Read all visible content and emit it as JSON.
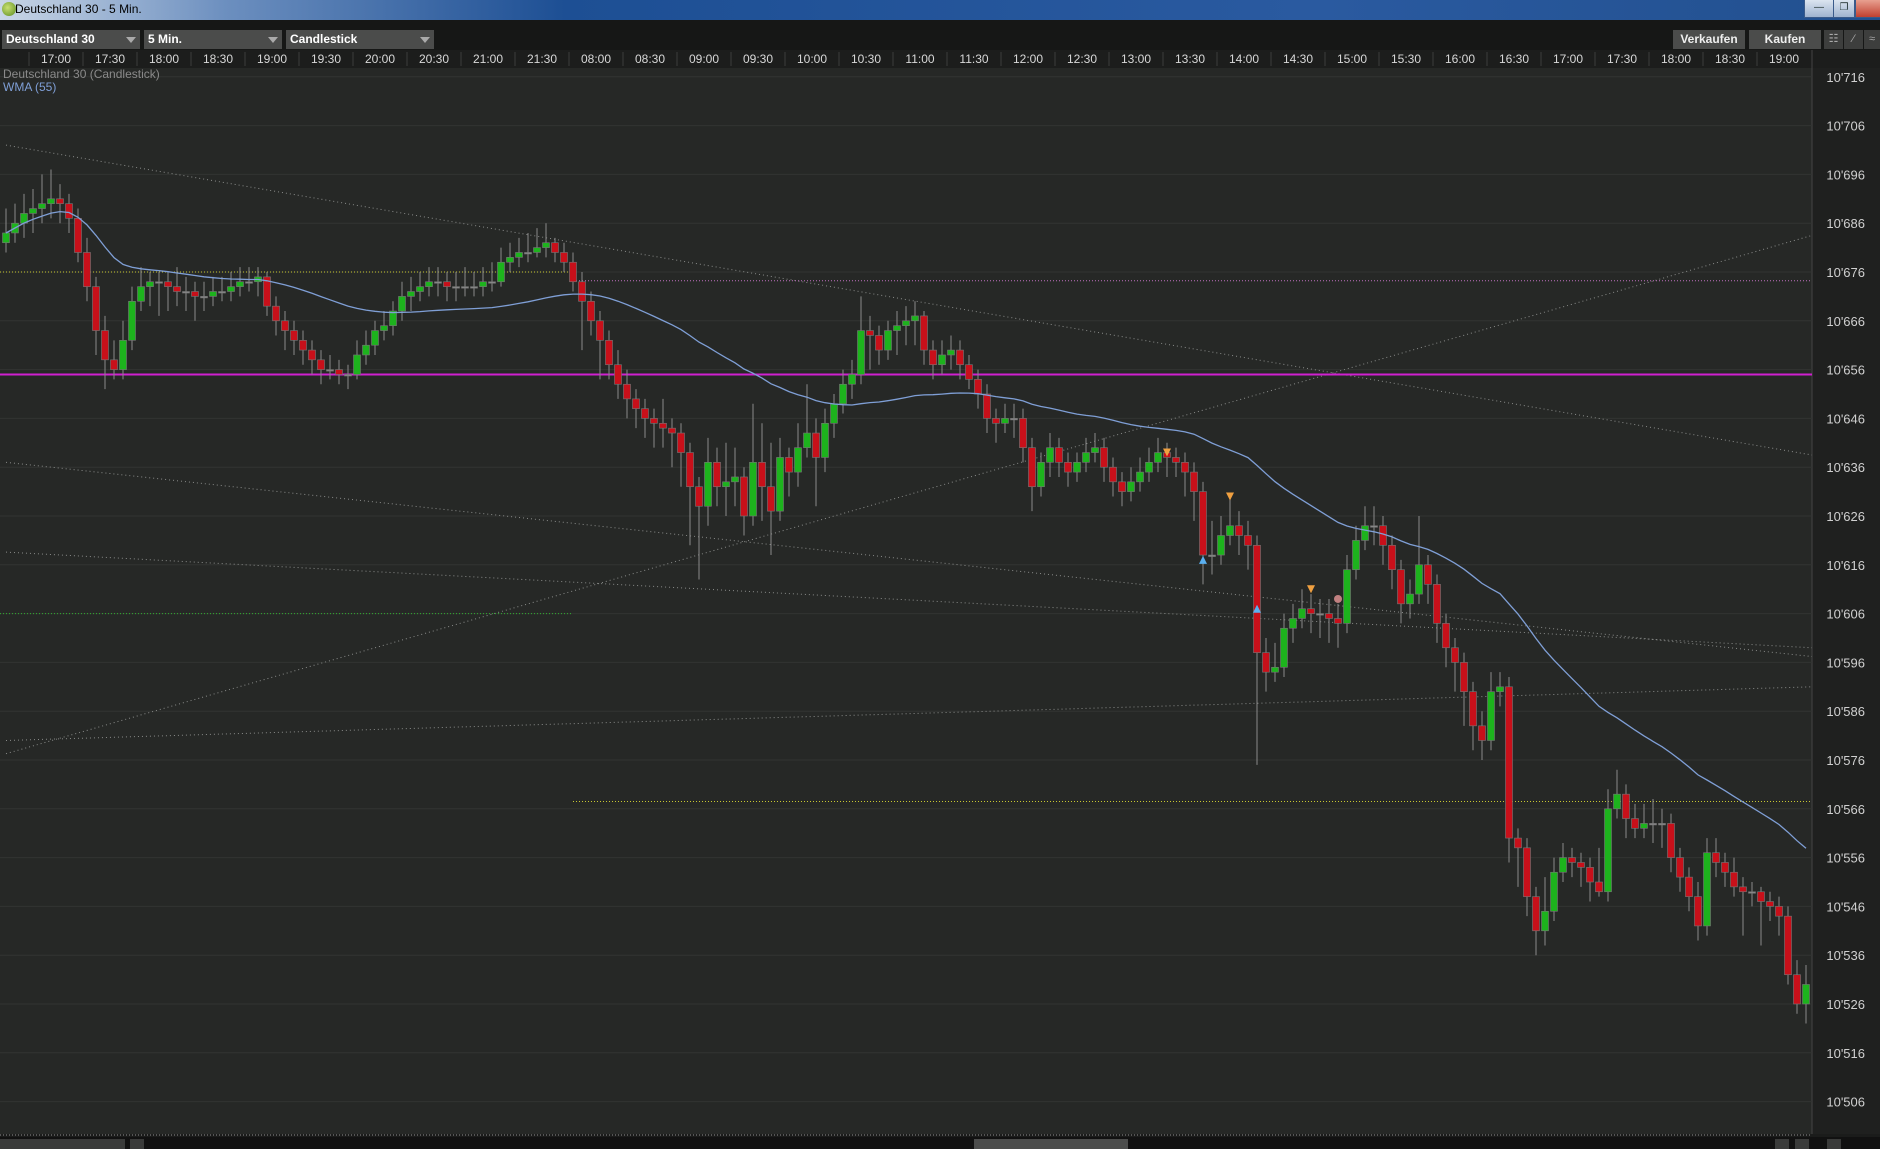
{
  "window": {
    "title": "Deutschland 30 - 5 Min.",
    "minimize_icon": "minimize-icon",
    "restore_icon": "restore-icon",
    "close_icon": "close-icon"
  },
  "toolbar": {
    "instrument": "Deutschland 30",
    "interval": "5 Min.",
    "chart_type": "Candlestick",
    "sell_label": "Verkaufen",
    "buy_label": "Kaufen",
    "icons": [
      "tick-chart-icon",
      "draw-line-icon",
      "indicator-chart-icon"
    ]
  },
  "legend": {
    "series": "Deutschland 30 (Candlestick)",
    "indicator": "WMA (55)"
  },
  "colors": {
    "up": "#1db31d",
    "down": "#c8101a",
    "wma": "#7f9fd6",
    "magenta_line": "#d020d0",
    "background": "#262826"
  },
  "chart_data": {
    "type": "candlestick",
    "title": "",
    "x_tick_labels": [
      "17:00",
      "17:30",
      "18:00",
      "18:30",
      "19:00",
      "19:30",
      "20:00",
      "20:30",
      "21:00",
      "21:30",
      "08:00",
      "08:30",
      "09:00",
      "09:30",
      "10:00",
      "10:30",
      "11:00",
      "11:30",
      "12:00",
      "12:30",
      "13:00",
      "13:30",
      "14:00",
      "14:30",
      "15:00",
      "15:30",
      "16:00",
      "16:30",
      "17:00",
      "17:30",
      "18:00",
      "18:30",
      "19:00"
    ],
    "y_tick_labels": [
      "10'716",
      "10'706",
      "10'696",
      "10'686",
      "10'676",
      "10'666",
      "10'656",
      "10'646",
      "10'636",
      "10'626",
      "10'616",
      "10'606",
      "10'596",
      "10'586",
      "10'576",
      "10'566",
      "10'556",
      "10'546",
      "10'536",
      "10'526",
      "10'516",
      "10'506"
    ],
    "ylim": [
      10500,
      10721
    ],
    "grid": true,
    "indicator": {
      "type": "WMA",
      "period": 55
    },
    "ohlc": [
      [
        10682,
        10689,
        10680,
        10684
      ],
      [
        10684,
        10690,
        10682,
        10686
      ],
      [
        10686,
        10692,
        10683,
        10688
      ],
      [
        10688,
        10693,
        10684,
        10689
      ],
      [
        10689,
        10696,
        10686,
        10690
      ],
      [
        10690,
        10697,
        10687,
        10691
      ],
      [
        10691,
        10694,
        10686,
        10690
      ],
      [
        10690,
        10692,
        10684,
        10687
      ],
      [
        10687,
        10689,
        10678,
        10680
      ],
      [
        10680,
        10683,
        10670,
        10673
      ],
      [
        10673,
        10675,
        10659,
        10664
      ],
      [
        10664,
        10667,
        10652,
        10658
      ],
      [
        10658,
        10662,
        10654,
        10656
      ],
      [
        10656,
        10666,
        10654,
        10662
      ],
      [
        10662,
        10673,
        10660,
        10670
      ],
      [
        10670,
        10677,
        10668,
        10673
      ],
      [
        10673,
        10676,
        10669,
        10674
      ],
      [
        10674,
        10676,
        10667,
        10674
      ],
      [
        10674,
        10676,
        10668,
        10673
      ],
      [
        10673,
        10677,
        10669,
        10672
      ],
      [
        10672,
        10675,
        10668,
        10672
      ],
      [
        10672,
        10674,
        10666,
        10671
      ],
      [
        10671,
        10674,
        10668,
        10671
      ],
      [
        10671,
        10675,
        10669,
        10672
      ],
      [
        10672,
        10675,
        10670,
        10672
      ],
      [
        10672,
        10676,
        10670,
        10673
      ],
      [
        10673,
        10677,
        10671,
        10674
      ],
      [
        10674,
        10677,
        10672,
        10674
      ],
      [
        10674,
        10677,
        10671,
        10675
      ],
      [
        10675,
        10676,
        10667,
        10669
      ],
      [
        10669,
        10671,
        10663,
        10666
      ],
      [
        10666,
        10668,
        10660,
        10664
      ],
      [
        10664,
        10666,
        10659,
        10662
      ],
      [
        10662,
        10664,
        10657,
        10660
      ],
      [
        10660,
        10662,
        10655,
        10658
      ],
      [
        10658,
        10660,
        10653,
        10656
      ],
      [
        10656,
        10659,
        10654,
        10656
      ],
      [
        10656,
        10658,
        10653,
        10655
      ],
      [
        10655,
        10657,
        10652,
        10655
      ],
      [
        10655,
        10662,
        10654,
        10659
      ],
      [
        10659,
        10664,
        10657,
        10661
      ],
      [
        10661,
        10666,
        10659,
        10664
      ],
      [
        10664,
        10668,
        10662,
        10665
      ],
      [
        10665,
        10670,
        10663,
        10668
      ],
      [
        10668,
        10674,
        10666,
        10671
      ],
      [
        10671,
        10675,
        10668,
        10672
      ],
      [
        10672,
        10676,
        10670,
        10673
      ],
      [
        10673,
        10677,
        10671,
        10674
      ],
      [
        10674,
        10677,
        10671,
        10674
      ],
      [
        10674,
        10676,
        10670,
        10673
      ],
      [
        10673,
        10676,
        10670,
        10673
      ],
      [
        10673,
        10677,
        10671,
        10673
      ],
      [
        10673,
        10676,
        10671,
        10673
      ],
      [
        10673,
        10677,
        10671,
        10674
      ],
      [
        10674,
        10678,
        10672,
        10674
      ],
      [
        10674,
        10681,
        10673,
        10678
      ],
      [
        10678,
        10682,
        10676,
        10679
      ],
      [
        10679,
        10683,
        10677,
        10680
      ],
      [
        10680,
        10684,
        10678,
        10680
      ],
      [
        10680,
        10685,
        10679,
        10681
      ],
      [
        10681,
        10686,
        10679,
        10682
      ],
      [
        10682,
        10683,
        10678,
        10680
      ],
      [
        10680,
        10682,
        10676,
        10678
      ],
      [
        10678,
        10680,
        10672,
        10674
      ],
      [
        10674,
        10676,
        10660,
        10670
      ],
      [
        10670,
        10672,
        10663,
        10666
      ],
      [
        10666,
        10668,
        10654,
        10662
      ],
      [
        10662,
        10664,
        10654,
        10657
      ],
      [
        10657,
        10660,
        10650,
        10653
      ],
      [
        10653,
        10656,
        10646,
        10650
      ],
      [
        10650,
        10652,
        10644,
        10648
      ],
      [
        10648,
        10650,
        10642,
        10646
      ],
      [
        10646,
        10648,
        10640,
        10645
      ],
      [
        10645,
        10650,
        10640,
        10644
      ],
      [
        10644,
        10646,
        10636,
        10643
      ],
      [
        10643,
        10645,
        10632,
        10639
      ],
      [
        10639,
        10641,
        10620,
        10632
      ],
      [
        10632,
        10634,
        10613,
        10628
      ],
      [
        10628,
        10642,
        10624,
        10637
      ],
      [
        10637,
        10640,
        10628,
        10632
      ],
      [
        10632,
        10641,
        10626,
        10633
      ],
      [
        10633,
        10640,
        10628,
        10634
      ],
      [
        10634,
        10636,
        10622,
        10626
      ],
      [
        10626,
        10649,
        10624,
        10637
      ],
      [
        10637,
        10645,
        10625,
        10632
      ],
      [
        10632,
        10641,
        10618,
        10627
      ],
      [
        10627,
        10642,
        10625,
        10638
      ],
      [
        10638,
        10640,
        10630,
        10635
      ],
      [
        10635,
        10645,
        10632,
        10640
      ],
      [
        10640,
        10653,
        10638,
        10643
      ],
      [
        10643,
        10646,
        10628,
        10638
      ],
      [
        10638,
        10648,
        10635,
        10645
      ],
      [
        10645,
        10651,
        10642,
        10649
      ],
      [
        10649,
        10656,
        10647,
        10653
      ],
      [
        10653,
        10658,
        10650,
        10655
      ],
      [
        10655,
        10671,
        10653,
        10664
      ],
      [
        10664,
        10667,
        10656,
        10663
      ],
      [
        10663,
        10665,
        10657,
        10660
      ],
      [
        10660,
        10666,
        10658,
        10664
      ],
      [
        10664,
        10668,
        10659,
        10665
      ],
      [
        10665,
        10669,
        10661,
        10666
      ],
      [
        10666,
        10670,
        10661,
        10667
      ],
      [
        10667,
        10668,
        10657,
        10660
      ],
      [
        10660,
        10662,
        10654,
        10657
      ],
      [
        10657,
        10662,
        10655,
        10659
      ],
      [
        10659,
        10663,
        10656,
        10660
      ],
      [
        10660,
        10662,
        10654,
        10657
      ],
      [
        10657,
        10659,
        10652,
        10654
      ],
      [
        10654,
        10656,
        10648,
        10651
      ],
      [
        10651,
        10653,
        10643,
        10646
      ],
      [
        10646,
        10648,
        10641,
        10645
      ],
      [
        10645,
        10649,
        10643,
        10646
      ],
      [
        10646,
        10649,
        10642,
        10646
      ],
      [
        10646,
        10648,
        10637,
        10640
      ],
      [
        10640,
        10642,
        10627,
        10632
      ],
      [
        10632,
        10639,
        10630,
        10637
      ],
      [
        10637,
        10643,
        10634,
        10640
      ],
      [
        10640,
        10642,
        10634,
        10637
      ],
      [
        10637,
        10639,
        10632,
        10635
      ],
      [
        10635,
        10639,
        10633,
        10637
      ],
      [
        10637,
        10642,
        10635,
        10639
      ],
      [
        10639,
        10643,
        10637,
        10640
      ],
      [
        10640,
        10642,
        10633,
        10636
      ],
      [
        10636,
        10638,
        10630,
        10633
      ],
      [
        10633,
        10635,
        10628,
        10631
      ],
      [
        10631,
        10636,
        10629,
        10633
      ],
      [
        10633,
        10638,
        10631,
        10635
      ],
      [
        10635,
        10640,
        10633,
        10637
      ],
      [
        10637,
        10642,
        10635,
        10639
      ],
      [
        10639,
        10641,
        10634,
        10638
      ],
      [
        10638,
        10640,
        10634,
        10637
      ],
      [
        10637,
        10639,
        10630,
        10635
      ],
      [
        10635,
        10637,
        10625,
        10631
      ],
      [
        10631,
        10633,
        10612,
        10618
      ],
      [
        10618,
        10625,
        10614,
        10618
      ],
      [
        10618,
        10626,
        10616,
        10622
      ],
      [
        10622,
        10630,
        10620,
        10624
      ],
      [
        10624,
        10627,
        10618,
        10622
      ],
      [
        10622,
        10625,
        10615,
        10620
      ],
      [
        10620,
        10622,
        10575,
        10598
      ],
      [
        10598,
        10601,
        10590,
        10594
      ],
      [
        10594,
        10600,
        10592,
        10595
      ],
      [
        10595,
        10606,
        10593,
        10603
      ],
      [
        10603,
        10608,
        10600,
        10605
      ],
      [
        10605,
        10611,
        10603,
        10607
      ],
      [
        10607,
        10610,
        10602,
        10606
      ],
      [
        10606,
        10609,
        10601,
        10606
      ],
      [
        10606,
        10609,
        10600,
        10605
      ],
      [
        10605,
        10608,
        10599,
        10604
      ],
      [
        10604,
        10618,
        10602,
        10615
      ],
      [
        10615,
        10624,
        10613,
        10621
      ],
      [
        10621,
        10628,
        10619,
        10624
      ],
      [
        10624,
        10628,
        10620,
        10624
      ],
      [
        10624,
        10626,
        10616,
        10620
      ],
      [
        10620,
        10622,
        10611,
        10615
      ],
      [
        10615,
        10617,
        10604,
        10608
      ],
      [
        10608,
        10613,
        10605,
        10610
      ],
      [
        10610,
        10626,
        10608,
        10616
      ],
      [
        10616,
        10618,
        10608,
        10612
      ],
      [
        10612,
        10614,
        10600,
        10604
      ],
      [
        10604,
        10606,
        10595,
        10599
      ],
      [
        10599,
        10601,
        10590,
        10596
      ],
      [
        10596,
        10598,
        10583,
        10590
      ],
      [
        10590,
        10592,
        10578,
        10583
      ],
      [
        10583,
        10586,
        10576,
        10580
      ],
      [
        10580,
        10594,
        10578,
        10590
      ],
      [
        10590,
        10594,
        10587,
        10591
      ],
      [
        10591,
        10593,
        10555,
        10560
      ],
      [
        10560,
        10562,
        10550,
        10558
      ],
      [
        10558,
        10560,
        10544,
        10548
      ],
      [
        10548,
        10550,
        10536,
        10541
      ],
      [
        10541,
        10552,
        10538,
        10545
      ],
      [
        10545,
        10556,
        10543,
        10553
      ],
      [
        10553,
        10559,
        10551,
        10556
      ],
      [
        10556,
        10558,
        10552,
        10555
      ],
      [
        10555,
        10557,
        10550,
        10554
      ],
      [
        10554,
        10556,
        10547,
        10551
      ],
      [
        10551,
        10558,
        10548,
        10549
      ],
      [
        10549,
        10570,
        10547,
        10566
      ],
      [
        10566,
        10574,
        10564,
        10569
      ],
      [
        10569,
        10571,
        10560,
        10564
      ],
      [
        10564,
        10567,
        10560,
        10562
      ],
      [
        10562,
        10567,
        10560,
        10563
      ],
      [
        10563,
        10568,
        10559,
        10563
      ],
      [
        10563,
        10566,
        10558,
        10563
      ],
      [
        10563,
        10565,
        10553,
        10556
      ],
      [
        10556,
        10558,
        10549,
        10552
      ],
      [
        10552,
        10554,
        10545,
        10548
      ],
      [
        10548,
        10551,
        10539,
        10542
      ],
      [
        10542,
        10560,
        10540,
        10557
      ],
      [
        10557,
        10560,
        10552,
        10555
      ],
      [
        10555,
        10557,
        10550,
        10553
      ],
      [
        10553,
        10556,
        10548,
        10550
      ],
      [
        10550,
        10552,
        10540,
        10549
      ],
      [
        10549,
        10551,
        10546,
        10549
      ],
      [
        10549,
        10550,
        10538,
        10547
      ],
      [
        10547,
        10549,
        10543,
        10546
      ],
      [
        10546,
        10548,
        10540,
        10544
      ],
      [
        10544,
        10546,
        10530,
        10532
      ],
      [
        10532,
        10535,
        10524,
        10526
      ],
      [
        10526,
        10534,
        10522,
        10530
      ]
    ],
    "horizontal_lines": [
      {
        "price": 10655,
        "from": 0,
        "to": 200,
        "style": "solid",
        "color": "#d020d0"
      },
      {
        "price": 10676,
        "from": 0,
        "to": 63,
        "style": "dotted",
        "color": "#c8c832"
      },
      {
        "price": 10674.2,
        "from": 63,
        "to": 200,
        "style": "dotted",
        "color": "#c070c0"
      },
      {
        "price": 10606,
        "from": 0,
        "to": 63,
        "style": "dotted",
        "color": "#30b030"
      },
      {
        "price": 10567.5,
        "from": 63,
        "to": 200,
        "style": "dotted",
        "color": "#c8c832"
      }
    ],
    "trend_lines": [
      {
        "from": [
          0,
          10702
        ],
        "to": [
          200,
          10638.5
        ]
      },
      {
        "from": [
          0,
          10577.3
        ],
        "to": [
          200,
          10683.5
        ]
      },
      {
        "from": [
          0,
          10637
        ],
        "to": [
          200,
          10597.2
        ]
      },
      {
        "from": [
          0,
          10618.6
        ],
        "to": [
          200,
          10599
        ]
      },
      {
        "from": [
          0,
          10580
        ],
        "to": [
          200,
          10591
        ]
      }
    ],
    "markers": [
      {
        "index": 129,
        "price": 10639,
        "type": "sell-arrow",
        "color": "#f0a040"
      },
      {
        "index": 133,
        "price": 10617,
        "type": "buy-arrow",
        "color": "#5ab0f0"
      },
      {
        "index": 136,
        "price": 10630,
        "type": "sell-arrow",
        "color": "#f0a040"
      },
      {
        "index": 139,
        "price": 10607,
        "type": "buy-arrow",
        "color": "#5ab0f0"
      },
      {
        "index": 145,
        "price": 10611,
        "type": "sell-arrow",
        "color": "#f0a040"
      },
      {
        "index": 148,
        "price": 10609,
        "type": "circle",
        "color": "#c08080"
      }
    ]
  }
}
